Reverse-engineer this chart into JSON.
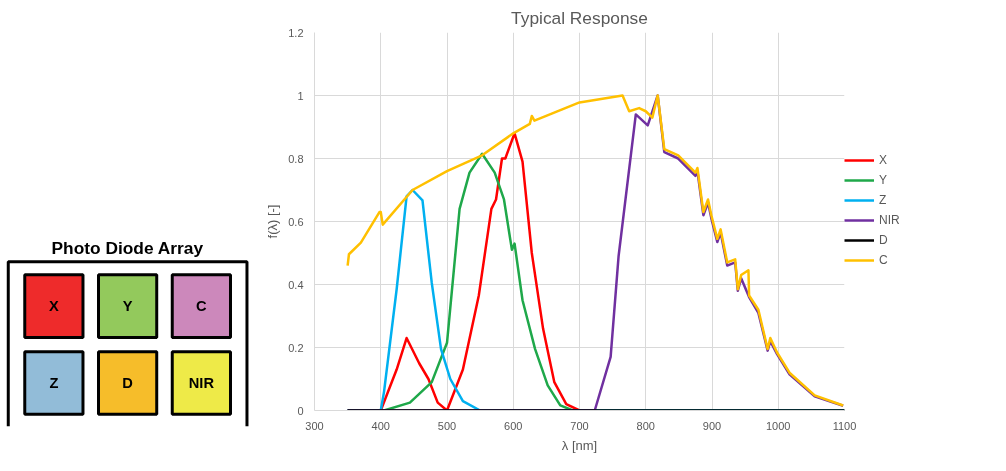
{
  "chart_data": {
    "type": "line",
    "title": "Typical Response",
    "xlabel": "λ [nm]",
    "ylabel": "f(λ) [-]",
    "xlim": [
      300,
      1100
    ],
    "ylim": [
      0,
      1.2
    ],
    "xticks": [
      300,
      400,
      500,
      600,
      700,
      800,
      900,
      1000,
      1100
    ],
    "yticks": [
      0,
      0.2,
      0.4,
      0.6,
      0.8,
      1,
      1.2
    ],
    "grid": true,
    "legend": "right",
    "line_style": "solid",
    "marker": "none",
    "annotations": [
      "Photo Diode Array",
      "X",
      "Y",
      "C",
      "Z",
      "D",
      "NIR"
    ],
    "series": [
      {
        "name": "X",
        "color": "#ff0000",
        "x": [
          350,
          400,
          424,
          439,
          458,
          472,
          486,
          500,
          524,
          548,
          567,
          574,
          583,
          588,
          602,
          614,
          628,
          645,
          662,
          680,
          700,
          1100
        ],
        "values": [
          0,
          0,
          0.13,
          0.23,
          0.15,
          0.1,
          0.025,
          0,
          0.13,
          0.365,
          0.64,
          0.67,
          0.8,
          0.8,
          0.88,
          0.79,
          0.5,
          0.26,
          0.09,
          0.02,
          0,
          0
        ]
      },
      {
        "name": "Y",
        "color": "#1fa84a",
        "x": [
          350,
          405,
          444,
          477,
          500,
          519,
          534,
          553,
          572,
          586,
          598,
          602,
          614,
          633,
          652,
          671,
          690,
          1100
        ],
        "values": [
          0,
          0,
          0.025,
          0.09,
          0.215,
          0.64,
          0.755,
          0.815,
          0.755,
          0.67,
          0.51,
          0.53,
          0.35,
          0.195,
          0.08,
          0.016,
          0,
          0
        ]
      },
      {
        "name": "Z",
        "color": "#00b0f0",
        "x": [
          350,
          400,
          405,
          424,
          439,
          448,
          463,
          477,
          491,
          505,
          524,
          550,
          1100
        ],
        "values": [
          0,
          0,
          0.06,
          0.385,
          0.68,
          0.7,
          0.667,
          0.405,
          0.195,
          0.1,
          0.03,
          0,
          0
        ]
      },
      {
        "name": "NIR",
        "color": "#7030a0",
        "x": [
          350,
          723,
          747,
          759,
          785,
          803,
          818,
          828,
          849,
          875,
          878,
          887,
          894,
          899,
          908,
          913,
          923,
          935,
          939,
          944,
          956,
          970,
          984,
          988,
          998,
          1017,
          1055,
          1098
        ],
        "values": [
          0,
          0,
          0.17,
          0.49,
          0.94,
          0.905,
          1.0,
          0.82,
          0.8,
          0.745,
          0.76,
          0.62,
          0.66,
          0.61,
          0.535,
          0.565,
          0.46,
          0.47,
          0.38,
          0.42,
          0.36,
          0.31,
          0.19,
          0.22,
          0.18,
          0.115,
          0.045,
          0.015
        ]
      },
      {
        "name": "D",
        "color": "#000000",
        "x": [
          350,
          1100
        ],
        "values": [
          0,
          0
        ]
      },
      {
        "name": "C",
        "color": "#ffc000",
        "x": [
          350,
          352,
          370,
          398,
          400,
          403,
          448,
          500,
          553,
          600,
          625,
          628,
          632,
          700,
          765,
          775,
          790,
          800,
          810,
          818,
          828,
          849,
          875,
          878,
          887,
          894,
          899,
          908,
          913,
          923,
          935,
          939,
          944,
          955,
          956,
          970,
          984,
          988,
          998,
          1017,
          1055,
          1098
        ],
        "values": [
          0.46,
          0.496,
          0.533,
          0.63,
          0.63,
          0.59,
          0.7,
          0.76,
          0.81,
          0.88,
          0.91,
          0.935,
          0.92,
          0.978,
          1.0,
          0.95,
          0.96,
          0.95,
          0.93,
          1.0,
          0.83,
          0.81,
          0.755,
          0.77,
          0.63,
          0.67,
          0.62,
          0.545,
          0.575,
          0.47,
          0.48,
          0.385,
          0.43,
          0.445,
          0.365,
          0.32,
          0.195,
          0.23,
          0.185,
          0.12,
          0.048,
          0.016
        ]
      }
    ]
  }
}
